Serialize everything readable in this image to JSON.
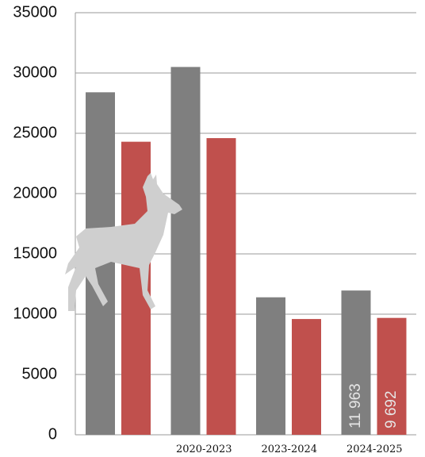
{
  "chart_data": {
    "type": "bar",
    "categories": [
      null,
      "2020-2023",
      "2023-2024",
      "2024-2025"
    ],
    "series": [
      {
        "color": "#7f7f7f",
        "values": [
          28400,
          30500,
          11400,
          11963
        ],
        "value_labels": [
          null,
          null,
          null,
          "11 963"
        ]
      },
      {
        "color": "#c0504d",
        "values": [
          24300,
          24600,
          9600,
          9692
        ],
        "value_labels": [
          null,
          null,
          null,
          "9 692"
        ]
      }
    ],
    "ylim": [
      0,
      35000
    ],
    "yticks": [
      0,
      5000,
      10000,
      15000,
      20000,
      25000,
      30000,
      35000
    ],
    "grid": true
  }
}
